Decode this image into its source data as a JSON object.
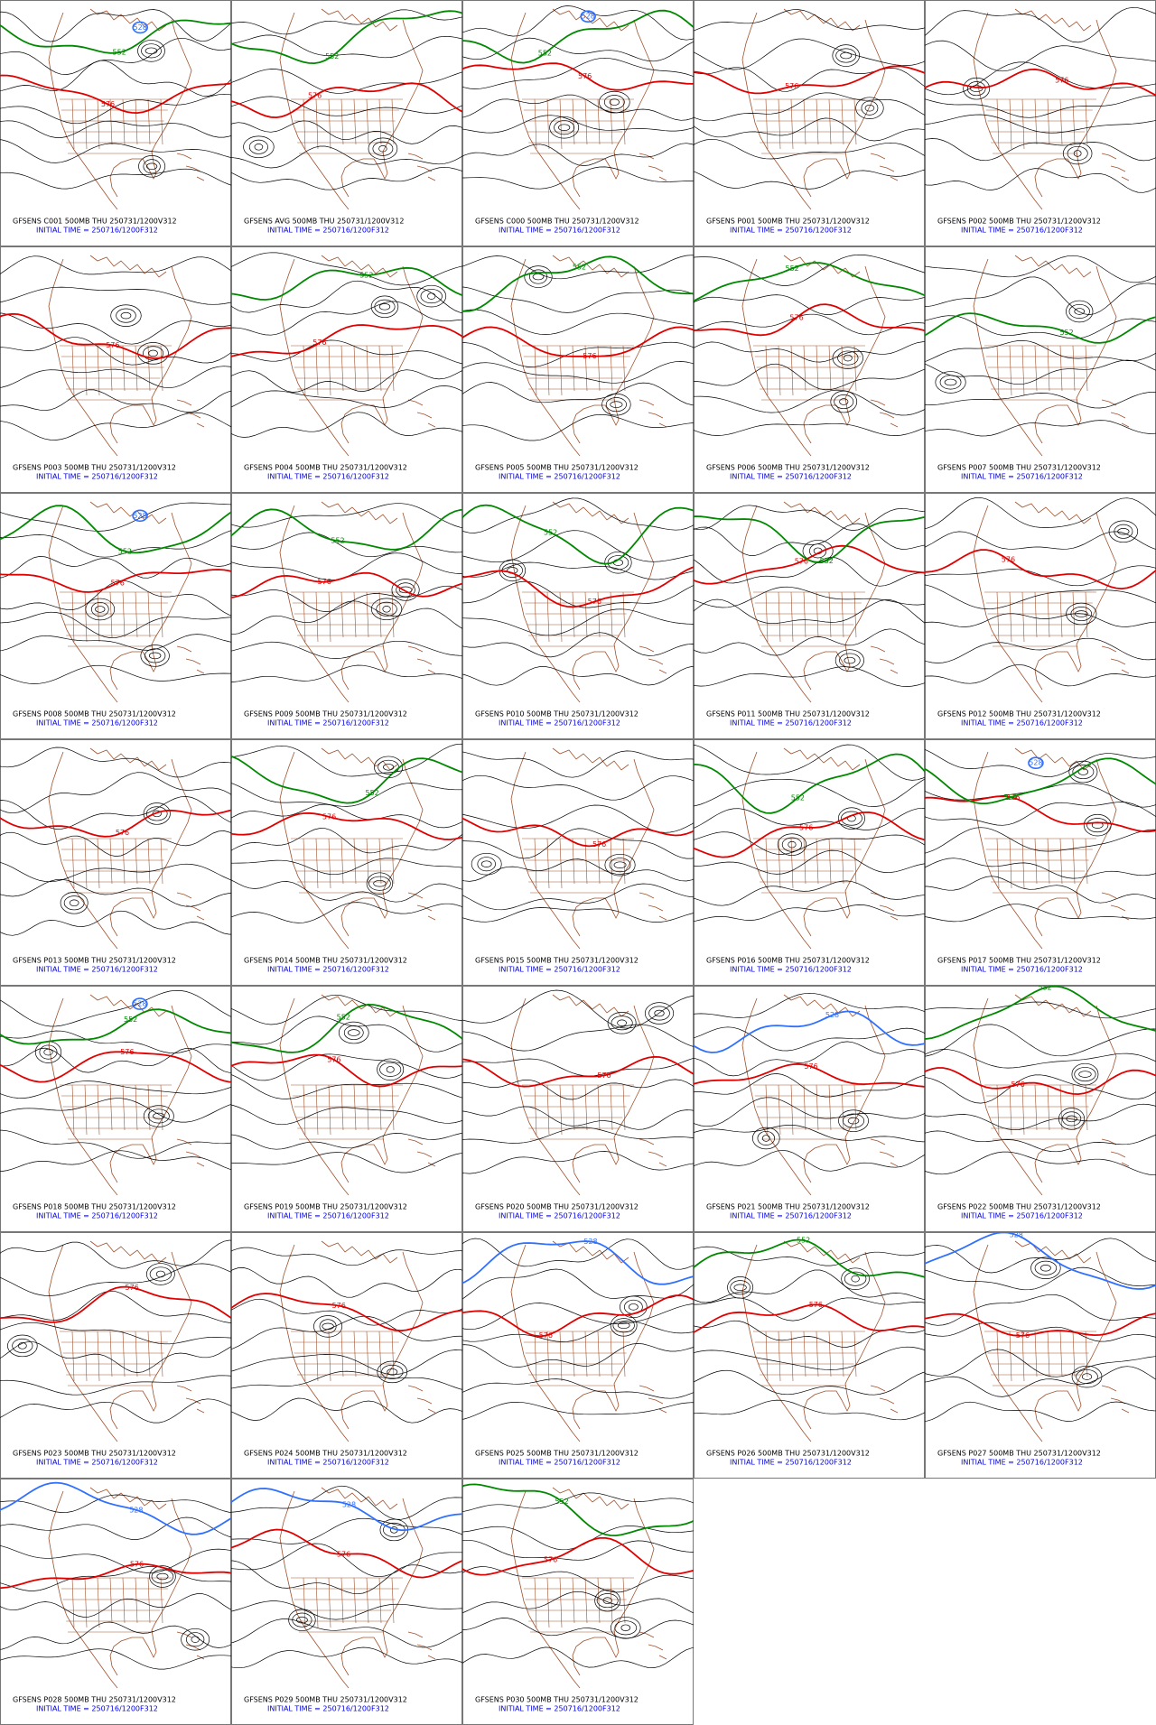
{
  "panels": [
    {
      "title": "GFSENS C001 500MB THU 250731/1200V312",
      "init": "INITIAL TIME = 250716/1200F312",
      "labels": [
        {
          "text": "576",
          "color": "#e00000"
        },
        {
          "text": "552",
          "color": "#008800"
        },
        {
          "text": "528",
          "color": "#3070ff"
        }
      ]
    },
    {
      "title": "GFSENS AVG 500MB THU 250731/1200V312",
      "init": "INITIAL TIME = 250716/1200F312",
      "labels": [
        {
          "text": "576",
          "color": "#e00000"
        },
        {
          "text": "552",
          "color": "#008800"
        }
      ]
    },
    {
      "title": "GFSENS C000 500MB THU 250731/1200V312",
      "init": "INITIAL TIME = 250716/1200F312",
      "labels": [
        {
          "text": "576",
          "color": "#e00000"
        },
        {
          "text": "552",
          "color": "#008800"
        },
        {
          "text": "528",
          "color": "#3070ff"
        }
      ]
    },
    {
      "title": "GFSENS P001 500MB THU 250731/1200V312",
      "init": "INITIAL TIME = 250716/1200F312",
      "labels": [
        {
          "text": "576",
          "color": "#e00000"
        }
      ]
    },
    {
      "title": "GFSENS P002 500MB THU 250731/1200V312",
      "init": "INITIAL TIME = 250716/1200F312",
      "labels": [
        {
          "text": "576",
          "color": "#e00000"
        }
      ]
    },
    {
      "title": "GFSENS P003 500MB THU 250731/1200V312",
      "init": "INITIAL TIME = 250716/1200F312",
      "labels": [
        {
          "text": "576",
          "color": "#e00000"
        }
      ]
    },
    {
      "title": "GFSENS P004 500MB THU 250731/1200V312",
      "init": "INITIAL TIME = 250716/1200F312",
      "labels": [
        {
          "text": "576",
          "color": "#e00000"
        },
        {
          "text": "552",
          "color": "#008800"
        }
      ]
    },
    {
      "title": "GFSENS P005 500MB THU 250731/1200V312",
      "init": "INITIAL TIME = 250716/1200F312",
      "labels": [
        {
          "text": "576",
          "color": "#e00000"
        },
        {
          "text": "552",
          "color": "#008800"
        }
      ]
    },
    {
      "title": "GFSENS P006 500MB THU 250731/1200V312",
      "init": "INITIAL TIME = 250716/1200F312",
      "labels": [
        {
          "text": "576",
          "color": "#e00000"
        },
        {
          "text": "552",
          "color": "#008800"
        }
      ]
    },
    {
      "title": "GFSENS P007 500MB THU 250731/1200V312",
      "init": "INITIAL TIME = 250716/1200F312",
      "labels": [
        {
          "text": "552",
          "color": "#008800"
        }
      ]
    },
    {
      "title": "GFSENS P008 500MB THU 250731/1200V312",
      "init": "INITIAL TIME = 250716/1200F312",
      "labels": [
        {
          "text": "576",
          "color": "#e00000"
        },
        {
          "text": "552",
          "color": "#008800"
        },
        {
          "text": "528",
          "color": "#3070ff"
        }
      ]
    },
    {
      "title": "GFSENS P009 500MB THU 250731/1200V312",
      "init": "INITIAL TIME = 250716/1200F312",
      "labels": [
        {
          "text": "576",
          "color": "#e00000"
        },
        {
          "text": "552",
          "color": "#008800"
        }
      ]
    },
    {
      "title": "GFSENS P010 500MB THU 250731/1200V312",
      "init": "INITIAL TIME = 250716/1200F312",
      "labels": [
        {
          "text": "576",
          "color": "#e00000"
        },
        {
          "text": "552",
          "color": "#008800"
        }
      ]
    },
    {
      "title": "GFSENS P011 500MB THU 250731/1200V312",
      "init": "INITIAL TIME = 250716/1200F312",
      "labels": [
        {
          "text": "576",
          "color": "#e00000"
        },
        {
          "text": "552",
          "color": "#008800"
        }
      ]
    },
    {
      "title": "GFSENS P012 500MB THU 250731/1200V312",
      "init": "INITIAL TIME = 250716/1200F312",
      "labels": [
        {
          "text": "576",
          "color": "#e00000"
        }
      ]
    },
    {
      "title": "GFSENS P013 500MB THU 250731/1200V312",
      "init": "INITIAL TIME = 250716/1200F312",
      "labels": [
        {
          "text": "576",
          "color": "#e00000"
        }
      ]
    },
    {
      "title": "GFSENS P014 500MB THU 250731/1200V312",
      "init": "INITIAL TIME = 250716/1200F312",
      "labels": [
        {
          "text": "576",
          "color": "#e00000"
        },
        {
          "text": "552",
          "color": "#008800"
        }
      ]
    },
    {
      "title": "GFSENS P015 500MB THU 250731/1200V312",
      "init": "INITIAL TIME = 250716/1200F312",
      "labels": [
        {
          "text": "576",
          "color": "#e00000"
        }
      ]
    },
    {
      "title": "GFSENS P016 500MB THU 250731/1200V312",
      "init": "INITIAL TIME = 250716/1200F312",
      "labels": [
        {
          "text": "576",
          "color": "#e00000"
        },
        {
          "text": "552",
          "color": "#008800"
        }
      ]
    },
    {
      "title": "GFSENS P017 500MB THU 250731/1200V312",
      "init": "INITIAL TIME = 250716/1200F312",
      "labels": [
        {
          "text": "576",
          "color": "#e00000"
        },
        {
          "text": "552",
          "color": "#008800"
        },
        {
          "text": "528",
          "color": "#3070ff"
        }
      ]
    },
    {
      "title": "GFSENS P018 500MB THU 250731/1200V312",
      "init": "INITIAL TIME = 250716/1200F312",
      "labels": [
        {
          "text": "576",
          "color": "#e00000"
        },
        {
          "text": "552",
          "color": "#008800"
        },
        {
          "text": "528",
          "color": "#3070ff"
        }
      ]
    },
    {
      "title": "GFSENS P019 500MB THU 250731/1200V312",
      "init": "INITIAL TIME = 250716/1200F312",
      "labels": [
        {
          "text": "576",
          "color": "#e00000"
        },
        {
          "text": "552",
          "color": "#008800"
        }
      ]
    },
    {
      "title": "GFSENS P020 500MB THU 250731/1200V312",
      "init": "INITIAL TIME = 250716/1200F312",
      "labels": [
        {
          "text": "576",
          "color": "#e00000"
        }
      ]
    },
    {
      "title": "GFSENS P021 500MB THU 250731/1200V312",
      "init": "INITIAL TIME = 250716/1200F312",
      "labels": [
        {
          "text": "576",
          "color": "#e00000"
        },
        {
          "text": "528",
          "color": "#3070ff"
        }
      ]
    },
    {
      "title": "GFSENS P022 500MB THU 250731/1200V312",
      "init": "INITIAL TIME = 250716/1200F312",
      "labels": [
        {
          "text": "576",
          "color": "#e00000"
        },
        {
          "text": "552",
          "color": "#008800"
        }
      ]
    },
    {
      "title": "GFSENS P023 500MB THU 250731/1200V312",
      "init": "INITIAL TIME = 250716/1200F312",
      "labels": [
        {
          "text": "576",
          "color": "#e00000"
        }
      ]
    },
    {
      "title": "GFSENS P024 500MB THU 250731/1200V312",
      "init": "INITIAL TIME = 250716/1200F312",
      "labels": [
        {
          "text": "576",
          "color": "#e00000"
        }
      ]
    },
    {
      "title": "GFSENS P025 500MB THU 250731/1200V312",
      "init": "INITIAL TIME = 250716/1200F312",
      "labels": [
        {
          "text": "576",
          "color": "#e00000"
        },
        {
          "text": "528",
          "color": "#3070ff"
        }
      ]
    },
    {
      "title": "GFSENS P026 500MB THU 250731/1200V312",
      "init": "INITIAL TIME = 250716/1200F312",
      "labels": [
        {
          "text": "576",
          "color": "#e00000"
        },
        {
          "text": "552",
          "color": "#008800"
        }
      ]
    },
    {
      "title": "GFSENS P027 500MB THU 250731/1200V312",
      "init": "INITIAL TIME = 250716/1200F312",
      "labels": [
        {
          "text": "576",
          "color": "#e00000"
        },
        {
          "text": "528",
          "color": "#3070ff"
        }
      ]
    },
    {
      "title": "GFSENS P028 500MB THU 250731/1200V312",
      "init": "INITIAL TIME = 250716/1200F312",
      "labels": [
        {
          "text": "576",
          "color": "#e00000"
        },
        {
          "text": "528",
          "color": "#3070ff"
        }
      ]
    },
    {
      "title": "GFSENS P029 500MB THU 250731/1200V312",
      "init": "INITIAL TIME = 250716/1200F312",
      "labels": [
        {
          "text": "576",
          "color": "#e00000"
        },
        {
          "text": "528",
          "color": "#3070ff"
        }
      ]
    },
    {
      "title": "GFSENS P030 500MB THU 250731/1200V312",
      "init": "INITIAL TIME = 250716/1200F312",
      "labels": [
        {
          "text": "576",
          "color": "#e00000"
        },
        {
          "text": "552",
          "color": "#008800"
        }
      ]
    }
  ]
}
